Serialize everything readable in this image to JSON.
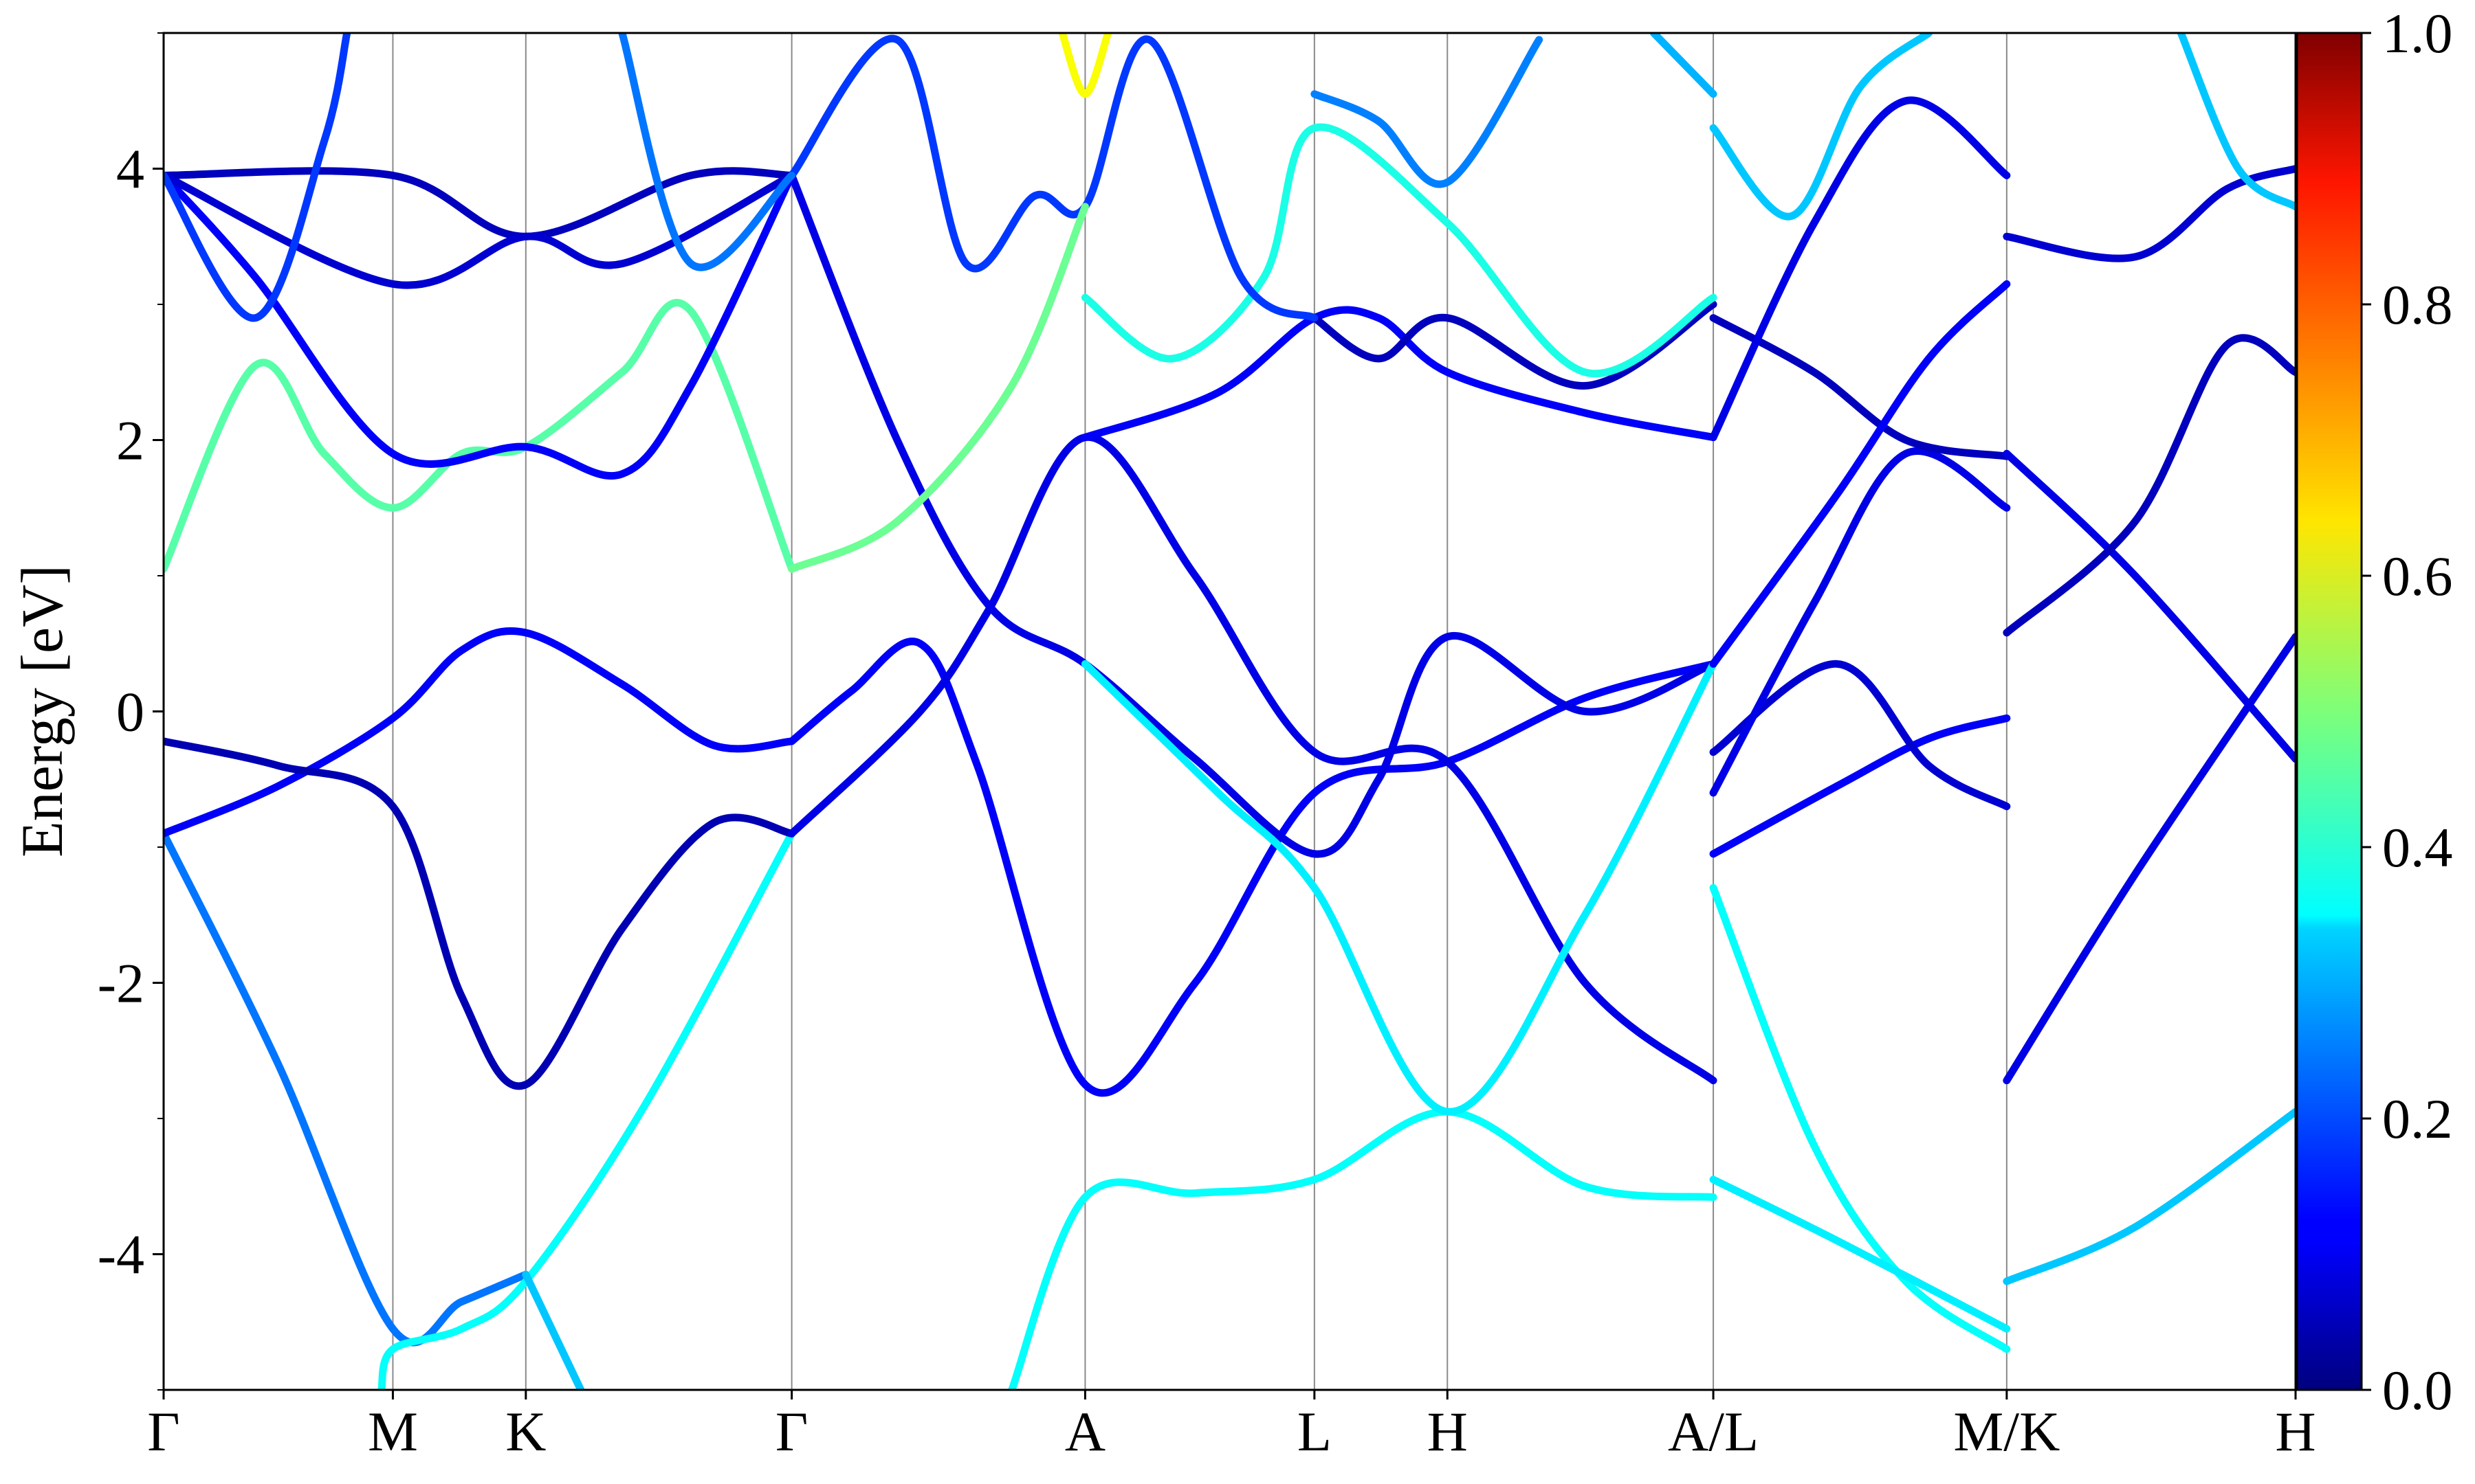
{
  "chart_data": {
    "type": "line",
    "title": "",
    "xlabel": "",
    "ylabel": "Energy [eV]",
    "ylim": [
      -5,
      5
    ],
    "xlim": [
      0,
      9.3
    ],
    "grid": false,
    "kpoints": [
      {
        "label": "Γ",
        "x": 0
      },
      {
        "label": "M",
        "x": 1.0
      },
      {
        "label": "K",
        "x": 1.58
      },
      {
        "label": "Γ",
        "x": 2.74
      },
      {
        "label": "A",
        "x": 4.02
      },
      {
        "label": "L",
        "x": 5.02
      },
      {
        "label": "H",
        "x": 5.6
      },
      {
        "label": "A/L",
        "x": 6.76
      },
      {
        "label": "M/K",
        "x": 8.04
      },
      {
        "label": "H",
        "x": 9.3
      }
    ],
    "yticks": [
      {
        "value": 4,
        "label": "4"
      },
      {
        "value": 2,
        "label": "2"
      },
      {
        "value": 0,
        "label": "0"
      },
      {
        "value": -2,
        "label": "-2"
      },
      {
        "value": -4,
        "label": "-4"
      }
    ],
    "colorbar": {
      "min": 0.0,
      "max": 1.0,
      "colormap": "jet",
      "ticks": [
        {
          "value": 1.0,
          "label": "1.0"
        },
        {
          "value": 0.8,
          "label": "0.8"
        },
        {
          "value": 0.6,
          "label": "0.6"
        },
        {
          "value": 0.4,
          "label": "0.4"
        },
        {
          "value": 0.2,
          "label": "0.2"
        },
        {
          "value": 0.0,
          "label": "0.0"
        }
      ]
    },
    "series": [
      {
        "weight": 0.24,
        "points": [
          [
            0,
            -0.9
          ],
          [
            0.5,
            -2.6
          ],
          [
            1.0,
            -4.55
          ],
          [
            1.3,
            -4.35
          ],
          [
            1.58,
            -4.15
          ]
        ]
      },
      {
        "weight": 0.38,
        "points": [
          [
            0.95,
            -5.0
          ],
          [
            1.0,
            -4.7
          ],
          [
            1.3,
            -4.55
          ],
          [
            1.58,
            -4.2
          ],
          [
            2.1,
            -2.9
          ],
          [
            2.74,
            -0.9
          ]
        ]
      },
      {
        "weight": 0.32,
        "points": [
          [
            1.58,
            -4.15
          ],
          [
            1.82,
            -5.0
          ]
        ]
      },
      {
        "weight": 0.12,
        "points": [
          [
            0,
            -0.9
          ],
          [
            0.5,
            -0.55
          ],
          [
            1.0,
            -0.05
          ],
          [
            1.3,
            0.45
          ],
          [
            1.58,
            0.58
          ],
          [
            2.0,
            0.2
          ],
          [
            2.4,
            -0.25
          ],
          [
            2.74,
            -0.22
          ]
        ]
      },
      {
        "weight": 0.05,
        "points": [
          [
            0,
            -0.22
          ],
          [
            0.5,
            -0.4
          ],
          [
            1.0,
            -0.7
          ],
          [
            1.3,
            -2.1
          ],
          [
            1.58,
            -2.75
          ],
          [
            2.0,
            -1.6
          ],
          [
            2.4,
            -0.82
          ],
          [
            2.74,
            -0.9
          ]
        ]
      },
      {
        "weight": 0.12,
        "points": [
          [
            2.74,
            -0.22
          ],
          [
            3.0,
            0.15
          ],
          [
            3.3,
            0.5
          ],
          [
            3.55,
            -0.4
          ],
          [
            4.02,
            -2.75
          ],
          [
            4.5,
            -2.0
          ],
          [
            5.02,
            -0.6
          ],
          [
            5.6,
            -0.37
          ],
          [
            6.2,
            0.1
          ],
          [
            6.76,
            0.35
          ]
        ]
      },
      {
        "weight": 0.1,
        "points": [
          [
            2.74,
            -0.9
          ],
          [
            3.3,
            0.0
          ],
          [
            3.6,
            0.75
          ],
          [
            4.02,
            2.02
          ],
          [
            4.5,
            1.0
          ],
          [
            5.02,
            -0.3
          ],
          [
            5.6,
            -0.37
          ],
          [
            6.2,
            -2.0
          ],
          [
            6.76,
            -2.72
          ]
        ]
      },
      {
        "weight": 0.1,
        "points": [
          [
            2.74,
            3.95
          ],
          [
            3.2,
            2.0
          ],
          [
            3.6,
            0.78
          ],
          [
            4.02,
            0.35
          ],
          [
            4.5,
            -0.35
          ],
          [
            5.02,
            -1.05
          ],
          [
            5.3,
            -0.5
          ],
          [
            5.6,
            0.55
          ],
          [
            6.2,
            0.0
          ],
          [
            6.76,
            0.35
          ]
        ]
      },
      {
        "weight": 0.38,
        "points": [
          [
            3.7,
            -5.0
          ],
          [
            4.02,
            -3.58
          ],
          [
            4.5,
            -3.55
          ],
          [
            5.02,
            -3.45
          ],
          [
            5.6,
            -2.95
          ],
          [
            6.2,
            -3.5
          ],
          [
            6.76,
            -3.58
          ]
        ]
      },
      {
        "weight": 0.36,
        "points": [
          [
            4.02,
            0.35
          ],
          [
            4.6,
            -0.6
          ],
          [
            5.02,
            -1.3
          ],
          [
            5.6,
            -2.95
          ],
          [
            6.2,
            -1.5
          ],
          [
            6.76,
            0.35
          ]
        ]
      },
      {
        "weight": 0.12,
        "points": [
          [
            4.02,
            2.02
          ],
          [
            4.6,
            2.35
          ],
          [
            5.02,
            2.9
          ],
          [
            5.3,
            2.9
          ],
          [
            5.6,
            2.5
          ],
          [
            6.2,
            2.2
          ],
          [
            6.76,
            2.02
          ]
        ]
      },
      {
        "weight": 0.06,
        "points": [
          [
            5.02,
            2.9
          ],
          [
            5.3,
            2.6
          ],
          [
            5.6,
            2.9
          ],
          [
            6.2,
            2.4
          ],
          [
            6.76,
            3.0
          ]
        ]
      },
      {
        "weight": 0.4,
        "points": [
          [
            4.02,
            3.05
          ],
          [
            4.4,
            2.6
          ],
          [
            4.8,
            3.2
          ],
          [
            5.02,
            4.3
          ],
          [
            5.6,
            3.6
          ],
          [
            6.2,
            2.5
          ],
          [
            6.76,
            3.05
          ]
        ]
      },
      {
        "weight": 0.18,
        "points": [
          [
            2.74,
            3.95
          ],
          [
            3.2,
            4.95
          ],
          [
            3.5,
            3.3
          ],
          [
            3.8,
            3.8
          ],
          [
            4.02,
            3.72
          ],
          [
            4.3,
            4.95
          ],
          [
            4.7,
            3.2
          ],
          [
            5.02,
            2.9
          ]
        ]
      },
      {
        "weight": 0.62,
        "points": [
          [
            3.92,
            5.0
          ],
          [
            4.02,
            4.55
          ],
          [
            4.12,
            5.0
          ]
        ]
      },
      {
        "weight": 0.25,
        "points": [
          [
            5.02,
            4.55
          ],
          [
            5.3,
            4.35
          ],
          [
            5.6,
            3.9
          ],
          [
            6.0,
            4.95
          ]
        ]
      },
      {
        "weight": 0.3,
        "points": [
          [
            6.5,
            5.0
          ],
          [
            6.76,
            4.55
          ]
        ]
      },
      {
        "weight": 0.38,
        "points": [
          [
            6.76,
            -1.3
          ],
          [
            7.2,
            -3.2
          ],
          [
            7.6,
            -4.2
          ],
          [
            8.04,
            -4.7
          ]
        ]
      },
      {
        "weight": 0.36,
        "points": [
          [
            6.76,
            -3.45
          ],
          [
            7.3,
            -3.9
          ],
          [
            8.04,
            -4.55
          ]
        ]
      },
      {
        "weight": 0.12,
        "points": [
          [
            6.76,
            -1.05
          ],
          [
            7.3,
            -0.55
          ],
          [
            7.7,
            -0.2
          ],
          [
            8.04,
            -0.05
          ]
        ]
      },
      {
        "weight": 0.08,
        "points": [
          [
            6.76,
            -0.3
          ],
          [
            7.3,
            0.35
          ],
          [
            7.7,
            -0.4
          ],
          [
            8.04,
            -0.7
          ]
        ]
      },
      {
        "weight": 0.1,
        "points": [
          [
            6.76,
            -0.6
          ],
          [
            7.2,
            0.8
          ],
          [
            7.6,
            1.9
          ],
          [
            8.04,
            1.5
          ]
        ]
      },
      {
        "weight": 0.06,
        "points": [
          [
            6.76,
            2.9
          ],
          [
            7.2,
            2.5
          ],
          [
            7.6,
            2.0
          ],
          [
            8.04,
            1.88
          ]
        ]
      },
      {
        "weight": 0.12,
        "points": [
          [
            6.76,
            0.35
          ],
          [
            7.3,
            1.6
          ],
          [
            7.7,
            2.6
          ],
          [
            8.04,
            3.15
          ]
        ]
      },
      {
        "weight": 0.1,
        "points": [
          [
            6.76,
            2.02
          ],
          [
            7.2,
            3.6
          ],
          [
            7.6,
            4.5
          ],
          [
            8.04,
            3.95
          ]
        ]
      },
      {
        "weight": 0.32,
        "points": [
          [
            6.76,
            4.3
          ],
          [
            7.1,
            3.65
          ],
          [
            7.4,
            4.6
          ],
          [
            7.7,
            5.0
          ]
        ]
      },
      {
        "weight": 0.32,
        "points": [
          [
            8.04,
            -4.2
          ],
          [
            8.6,
            -3.8
          ],
          [
            9.3,
            -2.95
          ]
        ]
      },
      {
        "weight": 0.1,
        "points": [
          [
            8.04,
            -2.72
          ],
          [
            8.6,
            -1.2
          ],
          [
            9.3,
            0.55
          ]
        ]
      },
      {
        "weight": 0.1,
        "points": [
          [
            8.04,
            1.9
          ],
          [
            8.6,
            1.0
          ],
          [
            9.3,
            -0.35
          ]
        ]
      },
      {
        "weight": 0.06,
        "points": [
          [
            8.04,
            0.58
          ],
          [
            8.6,
            1.4
          ],
          [
            9.0,
            2.7
          ],
          [
            9.3,
            2.5
          ]
        ]
      },
      {
        "weight": 0.08,
        "points": [
          [
            8.04,
            3.5
          ],
          [
            8.6,
            3.35
          ],
          [
            9.0,
            3.85
          ],
          [
            9.3,
            4.0
          ]
        ]
      },
      {
        "weight": 0.32,
        "points": [
          [
            8.8,
            5.0
          ],
          [
            9.05,
            4.0
          ],
          [
            9.3,
            3.72
          ]
        ]
      },
      {
        "weight": 0.46,
        "points": [
          [
            0,
            1.05
          ],
          [
            0.4,
            2.55
          ],
          [
            0.7,
            1.9
          ],
          [
            1.0,
            1.5
          ],
          [
            1.3,
            1.9
          ],
          [
            1.58,
            1.95
          ],
          [
            2.0,
            2.5
          ],
          [
            2.3,
            2.95
          ],
          [
            2.74,
            1.05
          ]
        ]
      },
      {
        "weight": 0.48,
        "points": [
          [
            2.74,
            1.05
          ],
          [
            3.2,
            1.4
          ],
          [
            3.7,
            2.4
          ],
          [
            4.02,
            3.72
          ]
        ]
      },
      {
        "weight": 0.12,
        "points": [
          [
            0,
            3.95
          ],
          [
            0.4,
            3.2
          ],
          [
            1.0,
            1.9
          ],
          [
            1.58,
            1.95
          ],
          [
            2.0,
            1.75
          ],
          [
            2.3,
            2.4
          ],
          [
            2.74,
            3.95
          ]
        ]
      },
      {
        "weight": 0.06,
        "points": [
          [
            0,
            3.95
          ],
          [
            1.0,
            3.95
          ],
          [
            1.58,
            3.5
          ],
          [
            2.3,
            3.95
          ],
          [
            2.74,
            3.95
          ]
        ]
      },
      {
        "weight": 0.08,
        "points": [
          [
            0,
            3.95
          ],
          [
            1.0,
            3.15
          ],
          [
            1.58,
            3.5
          ],
          [
            2.0,
            3.3
          ],
          [
            2.74,
            3.95
          ]
        ]
      },
      {
        "weight": 0.18,
        "points": [
          [
            0,
            3.95
          ],
          [
            0.4,
            2.9
          ],
          [
            0.7,
            4.2
          ],
          [
            0.8,
            5.0
          ]
        ]
      },
      {
        "weight": 0.24,
        "points": [
          [
            2.0,
            5.0
          ],
          [
            2.3,
            3.3
          ],
          [
            2.74,
            3.95
          ]
        ]
      }
    ]
  }
}
